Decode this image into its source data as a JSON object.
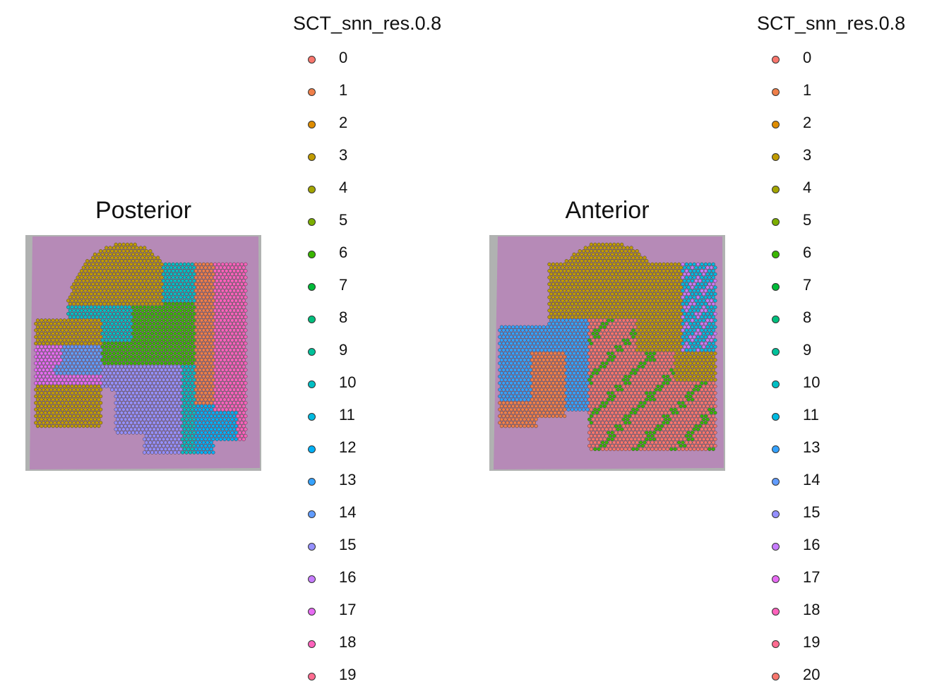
{
  "chart_data": [
    {
      "type": "scatter",
      "title": "Posterior",
      "legend_title": "SCT_snn_res.0.8",
      "legend_placement": "right",
      "grid": false,
      "background": "H&E tissue image (purple/pink stain on gray)",
      "legend_entries": [
        "0",
        "1",
        "2",
        "3",
        "4",
        "5",
        "6",
        "7",
        "8",
        "9",
        "10",
        "11",
        "12",
        "13",
        "14",
        "15",
        "16",
        "17",
        "18",
        "19"
      ],
      "regions": [
        {
          "cluster": "3",
          "description": "large upper-left dome (cortex)"
        },
        {
          "cluster": "10",
          "description": "band crossing the middle"
        },
        {
          "cluster": "6",
          "description": "central green region"
        },
        {
          "cluster": "15",
          "description": "lower-center purple region"
        },
        {
          "cluster": "1",
          "description": "right-side orange region"
        },
        {
          "cluster": "18",
          "description": "right pink band"
        },
        {
          "cluster": "12",
          "description": "lower-right blue region"
        },
        {
          "cluster": "17",
          "description": "left magenta patch"
        },
        {
          "cluster": "14",
          "description": "left blue band"
        }
      ]
    },
    {
      "type": "scatter",
      "title": "Anterior",
      "legend_title": "SCT_snn_res.0.8",
      "legend_placement": "right",
      "grid": false,
      "background": "H&E tissue image (purple/pink stain on gray)",
      "legend_entries": [
        "0",
        "1",
        "2",
        "3",
        "4",
        "5",
        "6",
        "7",
        "8",
        "9",
        "10",
        "11",
        "13",
        "14",
        "15",
        "16",
        "17",
        "18",
        "19",
        "20"
      ],
      "regions": [
        {
          "cluster": "0",
          "description": "large lower-right red region"
        },
        {
          "cluster": "3",
          "description": "upper dome and patches"
        },
        {
          "cluster": "13",
          "description": "left blue region"
        },
        {
          "cluster": "1",
          "description": "left orange lobe"
        },
        {
          "cluster": "11",
          "description": "cyan streaks upper right"
        },
        {
          "cluster": "16",
          "description": "purple streaks upper right"
        },
        {
          "cluster": "6",
          "description": "green patches"
        }
      ]
    }
  ],
  "palette": {
    "0": "#F8766D",
    "1": "#EF7F49",
    "2": "#DE8C00",
    "3": "#C09B00",
    "4": "#A3A500",
    "5": "#7CAE00",
    "6": "#39B600",
    "7": "#00BA38",
    "8": "#00BF7D",
    "9": "#00C19A",
    "10": "#00BFC4",
    "11": "#00BAE0",
    "12": "#00B0F6",
    "13": "#35A2FF",
    "14": "#619CFF",
    "15": "#9590FF",
    "16": "#C77CFF",
    "17": "#E76BF3",
    "18": "#FF62BC",
    "19": "#FF6C91",
    "20": "#F8766D"
  }
}
